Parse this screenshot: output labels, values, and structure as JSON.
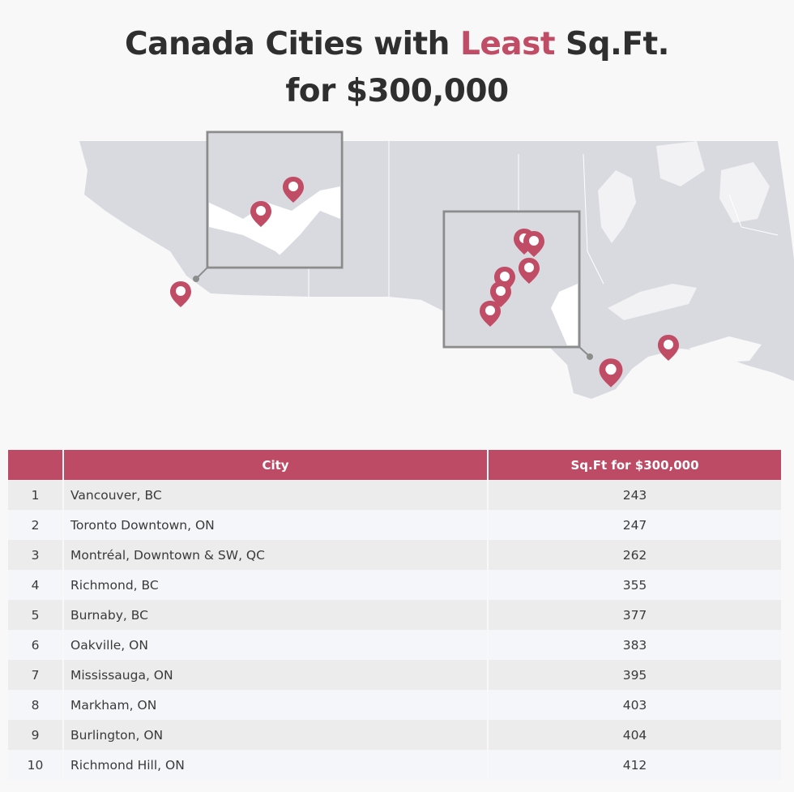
{
  "header": {
    "title_part1": "Canada Cities with ",
    "title_accent": "Least",
    "title_part2": " Sq.Ft.",
    "title_line2": "for $300,000"
  },
  "colors": {
    "accent": "#bd4b65",
    "land": "#d9dadf",
    "pin": "#c14c66",
    "row_odd": "#ececed",
    "row_even": "#f5f6f9"
  },
  "map": {
    "marker_icon": "map-pin-icon",
    "markers": [
      "Vancouver area",
      "Toronto area",
      "Montréal"
    ]
  },
  "table": {
    "headers": {
      "rank": "",
      "city": "City",
      "sqft": "Sq.Ft for $300,000"
    },
    "rows": [
      {
        "rank": "1",
        "city": "Vancouver, BC",
        "sqft": "243"
      },
      {
        "rank": "2",
        "city": "Toronto Downtown, ON",
        "sqft": "247"
      },
      {
        "rank": "3",
        "city": "Montréal, Downtown & SW, QC",
        "sqft": "262"
      },
      {
        "rank": "4",
        "city": "Richmond, BC",
        "sqft": "355"
      },
      {
        "rank": "5",
        "city": "Burnaby, BC",
        "sqft": "377"
      },
      {
        "rank": "6",
        "city": "Oakville, ON",
        "sqft": "383"
      },
      {
        "rank": "7",
        "city": "Mississauga, ON",
        "sqft": "395"
      },
      {
        "rank": "8",
        "city": "Markham, ON",
        "sqft": "403"
      },
      {
        "rank": "9",
        "city": "Burlington, ON",
        "sqft": "404"
      },
      {
        "rank": "10",
        "city": "Richmond Hill, ON",
        "sqft": "412"
      }
    ]
  }
}
